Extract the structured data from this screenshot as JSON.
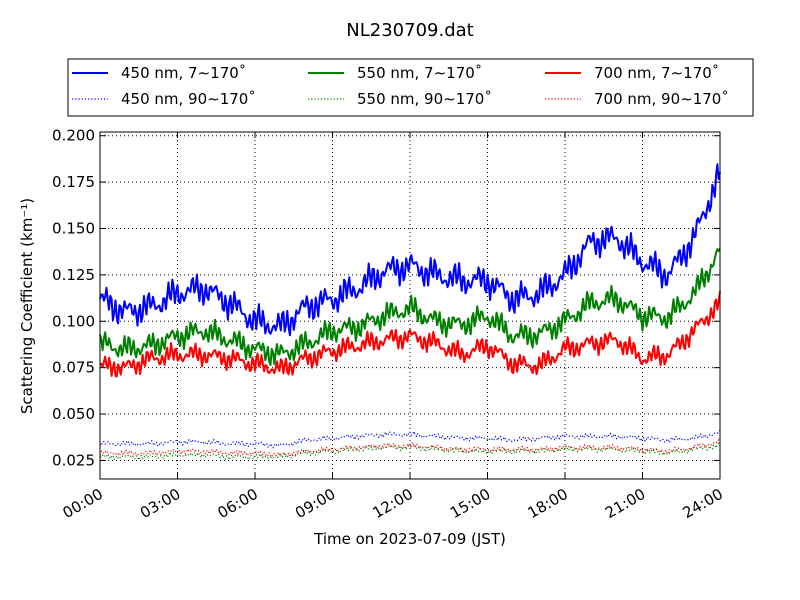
{
  "chart_data": {
    "type": "line",
    "title": "NL230709.dat",
    "xlabel": "Time on 2023-07-09 (JST)",
    "ylabel": "Scattering Coefficient (km⁻¹)",
    "xlim": [
      "00:00",
      "24:00"
    ],
    "ylim": [
      0.015,
      0.202
    ],
    "grid": true,
    "legend_position": "top",
    "x_ticks": [
      "00:00",
      "03:00",
      "06:00",
      "09:00",
      "12:00",
      "15:00",
      "18:00",
      "21:00",
      "24:00"
    ],
    "y_ticks": [
      "0.025",
      "0.050",
      "0.075",
      "0.100",
      "0.125",
      "0.150",
      "0.175",
      "0.200"
    ],
    "legend_entries": [
      "450 nm, 7∼170˚",
      "550 nm, 7∼170˚",
      "700 nm, 7∼170˚",
      "450 nm, 90∼170˚",
      "550 nm, 90∼170˚",
      "700 nm, 90∼170˚"
    ],
    "x": [
      "00:00",
      "01:00",
      "02:00",
      "03:00",
      "04:00",
      "05:00",
      "06:00",
      "07:00",
      "08:00",
      "09:00",
      "10:00",
      "11:00",
      "12:00",
      "13:00",
      "14:00",
      "15:00",
      "16:00",
      "17:00",
      "18:00",
      "19:00",
      "20:00",
      "21:00",
      "22:00",
      "23:00",
      "24:00"
    ],
    "series": [
      {
        "name": "450 nm, 7∼170˚",
        "color": "#0000ff",
        "style": "solid",
        "values": [
          0.112,
          0.105,
          0.108,
          0.115,
          0.118,
          0.11,
          0.1,
          0.097,
          0.108,
          0.112,
          0.118,
          0.127,
          0.13,
          0.125,
          0.122,
          0.122,
          0.112,
          0.115,
          0.125,
          0.143,
          0.145,
          0.132,
          0.125,
          0.145,
          0.18
        ]
      },
      {
        "name": "550 nm, 7∼170˚",
        "color": "#008000",
        "style": "solid",
        "values": [
          0.088,
          0.085,
          0.087,
          0.092,
          0.095,
          0.09,
          0.085,
          0.082,
          0.088,
          0.095,
          0.097,
          0.103,
          0.107,
          0.1,
          0.098,
          0.103,
          0.092,
          0.093,
          0.1,
          0.11,
          0.112,
          0.103,
          0.102,
          0.115,
          0.138
        ]
      },
      {
        "name": "700 nm, 7∼170˚",
        "color": "#ff0000",
        "style": "solid",
        "values": [
          0.076,
          0.075,
          0.08,
          0.082,
          0.082,
          0.08,
          0.077,
          0.074,
          0.08,
          0.084,
          0.087,
          0.09,
          0.092,
          0.088,
          0.082,
          0.087,
          0.077,
          0.076,
          0.085,
          0.088,
          0.09,
          0.08,
          0.082,
          0.095,
          0.11
        ]
      },
      {
        "name": "450 nm, 90∼170˚",
        "color": "#0000ff",
        "style": "dotted",
        "values": [
          0.034,
          0.034,
          0.034,
          0.035,
          0.035,
          0.034,
          0.034,
          0.033,
          0.036,
          0.037,
          0.038,
          0.039,
          0.039,
          0.038,
          0.037,
          0.037,
          0.036,
          0.037,
          0.038,
          0.038,
          0.038,
          0.037,
          0.036,
          0.037,
          0.04
        ]
      },
      {
        "name": "550 nm, 90∼170˚",
        "color": "#008000",
        "style": "dotted",
        "values": [
          0.027,
          0.027,
          0.027,
          0.028,
          0.028,
          0.027,
          0.027,
          0.027,
          0.029,
          0.03,
          0.031,
          0.032,
          0.032,
          0.031,
          0.03,
          0.03,
          0.03,
          0.03,
          0.031,
          0.031,
          0.031,
          0.03,
          0.029,
          0.031,
          0.033
        ]
      },
      {
        "name": "700 nm, 90∼170˚",
        "color": "#ff0000",
        "style": "dotted",
        "values": [
          0.029,
          0.029,
          0.029,
          0.03,
          0.03,
          0.029,
          0.029,
          0.028,
          0.03,
          0.031,
          0.032,
          0.033,
          0.033,
          0.032,
          0.031,
          0.031,
          0.031,
          0.031,
          0.032,
          0.032,
          0.032,
          0.031,
          0.03,
          0.032,
          0.035
        ]
      }
    ]
  }
}
